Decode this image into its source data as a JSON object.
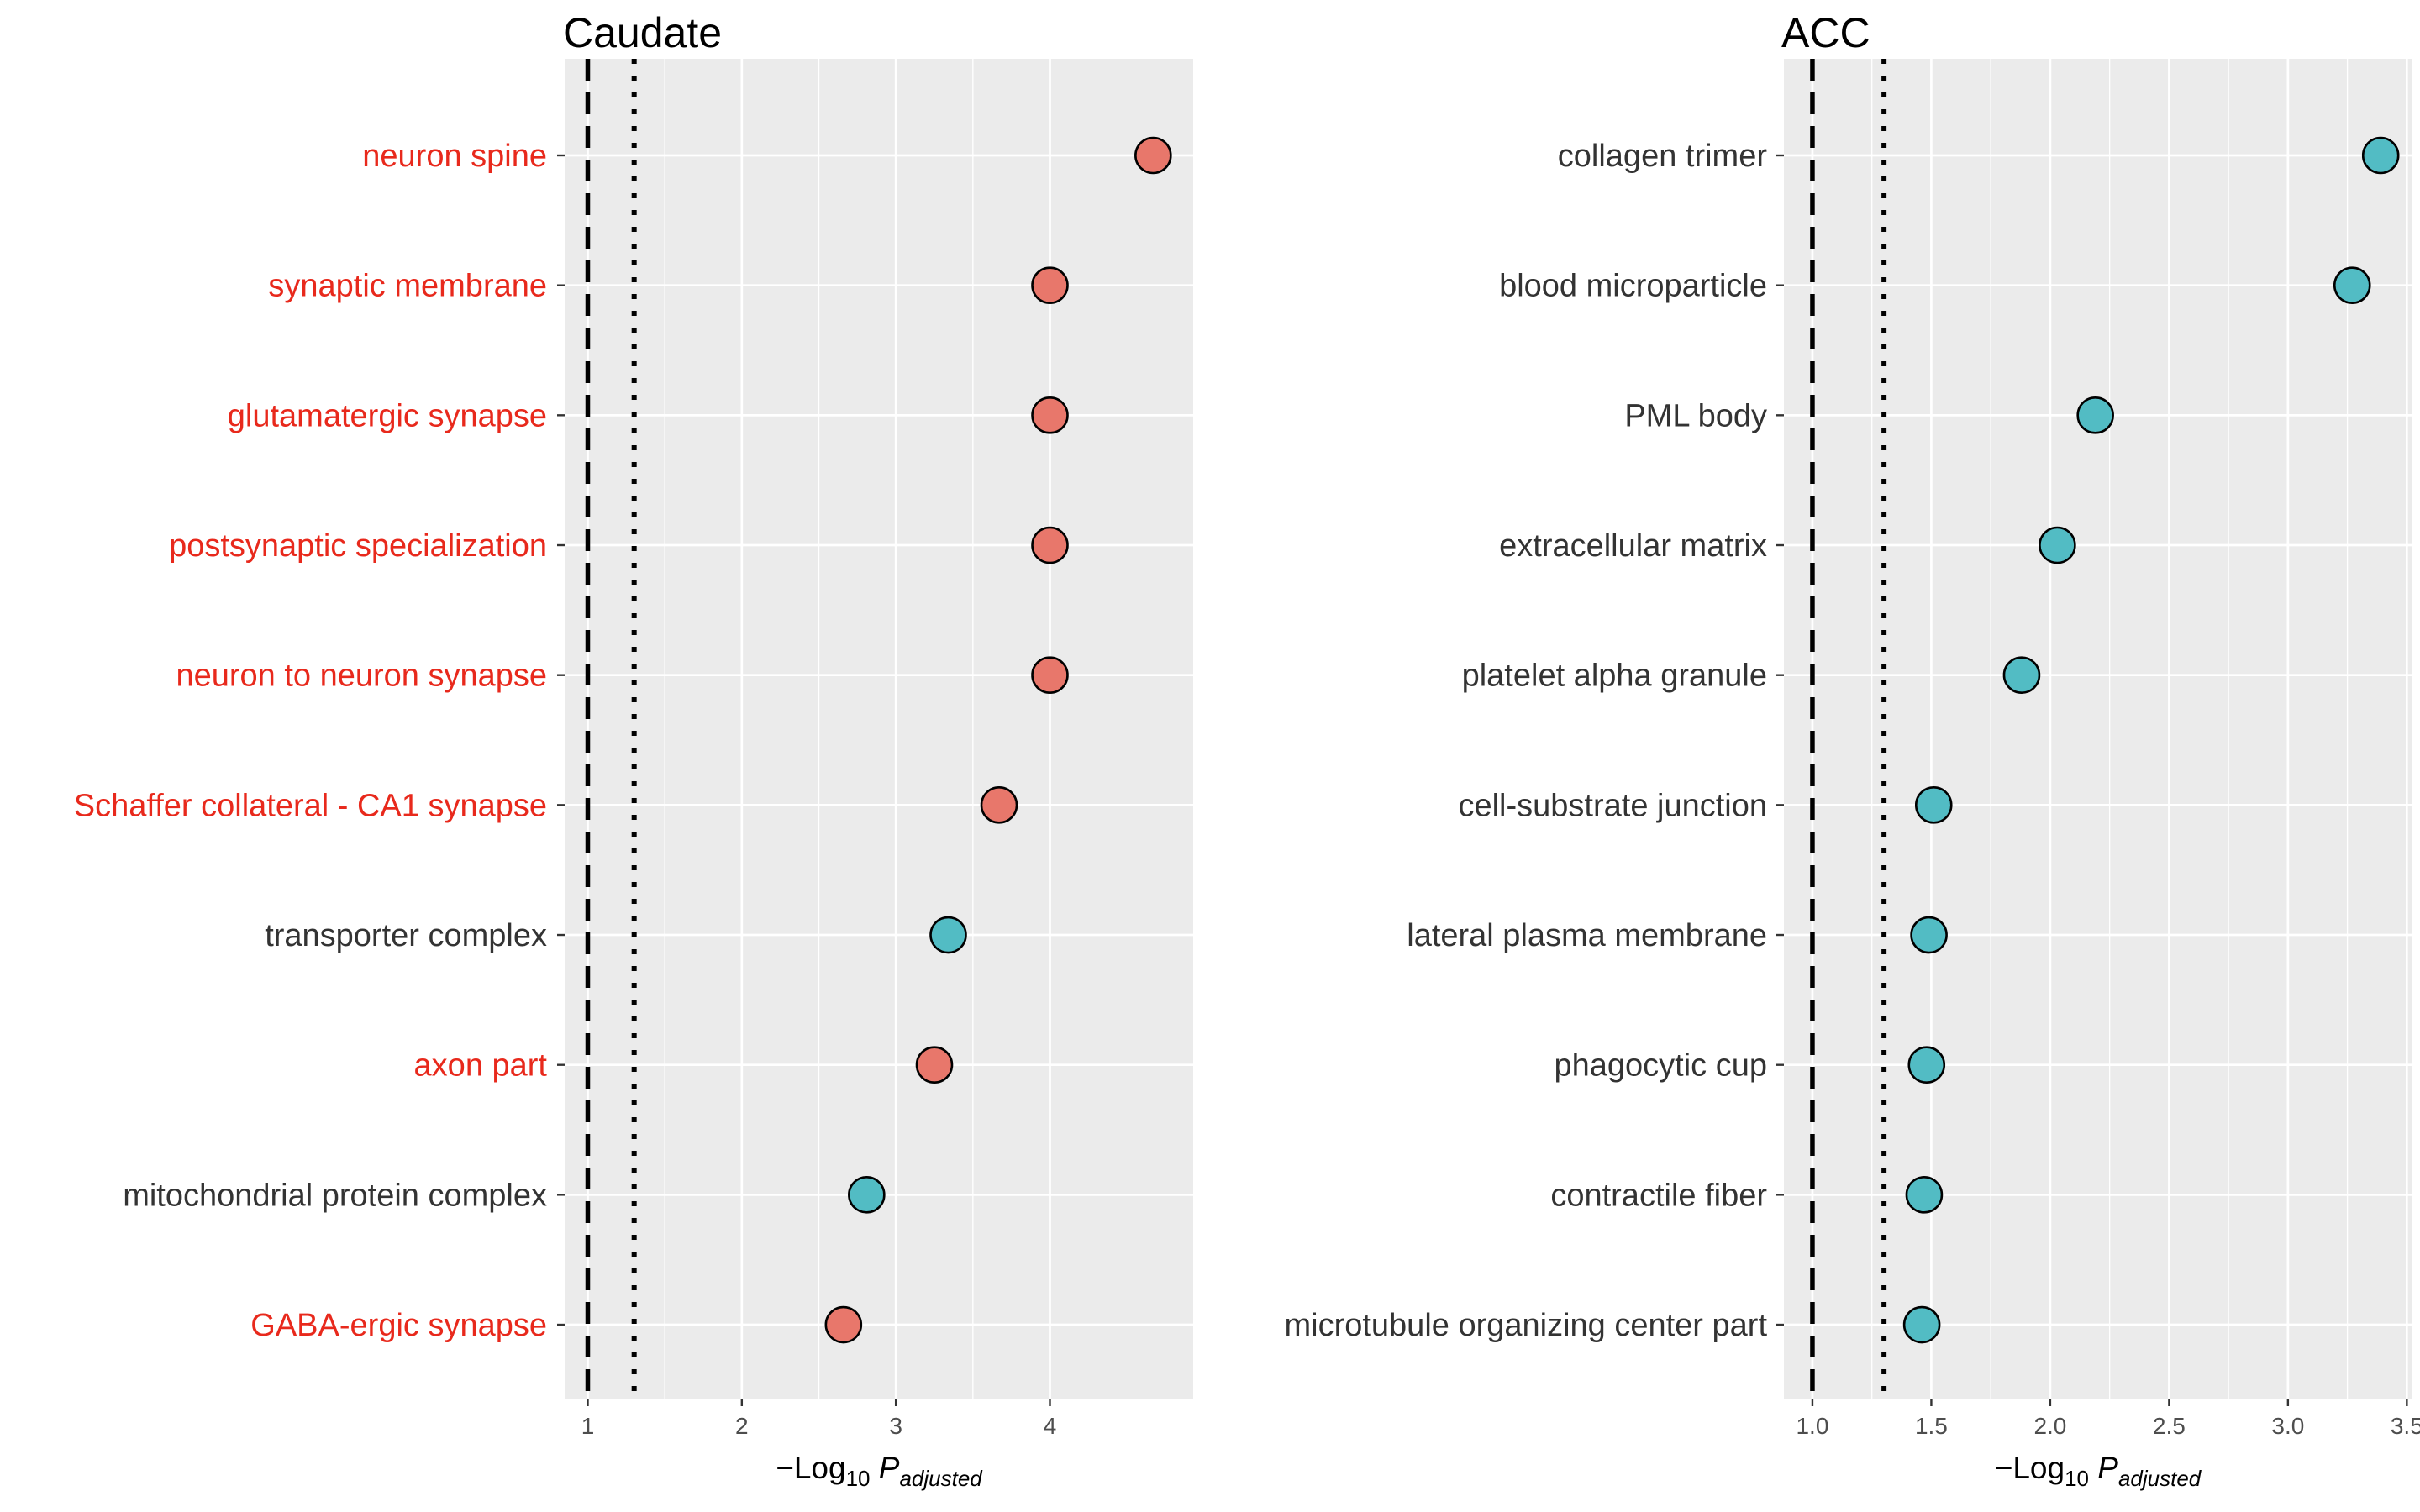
{
  "colors": {
    "panel_bg": "#ebebeb",
    "grid": "#ffffff",
    "synapse_label": "#e8291c",
    "default_label": "#333333",
    "point_red": "#e8776b",
    "point_teal": "#52bcc4",
    "point_stroke": "#000000"
  },
  "chart_data": [
    {
      "type": "scatter",
      "title": "Caudate",
      "xlabel": "−Log10 Padjusted",
      "xlim": [
        0.85,
        4.93
      ],
      "xticks": [
        1,
        2,
        3,
        4
      ],
      "ref_lines": [
        {
          "x": 1.0,
          "style": "dashed"
        },
        {
          "x": 1.301,
          "style": "dotted"
        }
      ],
      "grid": true,
      "categories": [
        {
          "label": "neuron spine",
          "value": 4.67,
          "group": "red",
          "label_color": "red"
        },
        {
          "label": "synaptic membrane",
          "value": 4.0,
          "group": "red",
          "label_color": "red"
        },
        {
          "label": "glutamatergic synapse",
          "value": 4.0,
          "group": "red",
          "label_color": "red"
        },
        {
          "label": "postsynaptic specialization",
          "value": 4.0,
          "group": "red",
          "label_color": "red"
        },
        {
          "label": "neuron to neuron synapse",
          "value": 4.0,
          "group": "red",
          "label_color": "red"
        },
        {
          "label": "Schaffer collateral - CA1 synapse",
          "value": 3.67,
          "group": "red",
          "label_color": "red"
        },
        {
          "label": "transporter complex",
          "value": 3.34,
          "group": "teal",
          "label_color": "default"
        },
        {
          "label": "axon part",
          "value": 3.25,
          "group": "red",
          "label_color": "red"
        },
        {
          "label": "mitochondrial protein complex",
          "value": 2.81,
          "group": "teal",
          "label_color": "default"
        },
        {
          "label": "GABA-ergic synapse",
          "value": 2.66,
          "group": "red",
          "label_color": "red"
        }
      ]
    },
    {
      "type": "scatter",
      "title": "ACC",
      "xlabel": "−Log10 Padjusted",
      "xlim": [
        0.88,
        3.52
      ],
      "xticks": [
        "1.0",
        "1.5",
        "2.0",
        "2.5",
        "3.0",
        "3.5"
      ],
      "ref_lines": [
        {
          "x": 1.0,
          "style": "dashed"
        },
        {
          "x": 1.301,
          "style": "dotted"
        }
      ],
      "grid": true,
      "categories": [
        {
          "label": "collagen trimer",
          "value": 3.39,
          "group": "teal",
          "label_color": "default"
        },
        {
          "label": "blood microparticle",
          "value": 3.27,
          "group": "teal",
          "label_color": "default"
        },
        {
          "label": "PML body",
          "value": 2.19,
          "group": "teal",
          "label_color": "default"
        },
        {
          "label": "extracellular matrix",
          "value": 2.03,
          "group": "teal",
          "label_color": "default"
        },
        {
          "label": "platelet alpha granule",
          "value": 1.88,
          "group": "teal",
          "label_color": "default"
        },
        {
          "label": "cell-substrate junction",
          "value": 1.51,
          "group": "teal",
          "label_color": "default"
        },
        {
          "label": "lateral plasma membrane",
          "value": 1.49,
          "group": "teal",
          "label_color": "default"
        },
        {
          "label": "phagocytic cup",
          "value": 1.48,
          "group": "teal",
          "label_color": "default"
        },
        {
          "label": "contractile fiber",
          "value": 1.47,
          "group": "teal",
          "label_color": "default"
        },
        {
          "label": "microtubule organizing center part",
          "value": 1.46,
          "group": "teal",
          "label_color": "default"
        }
      ]
    }
  ]
}
